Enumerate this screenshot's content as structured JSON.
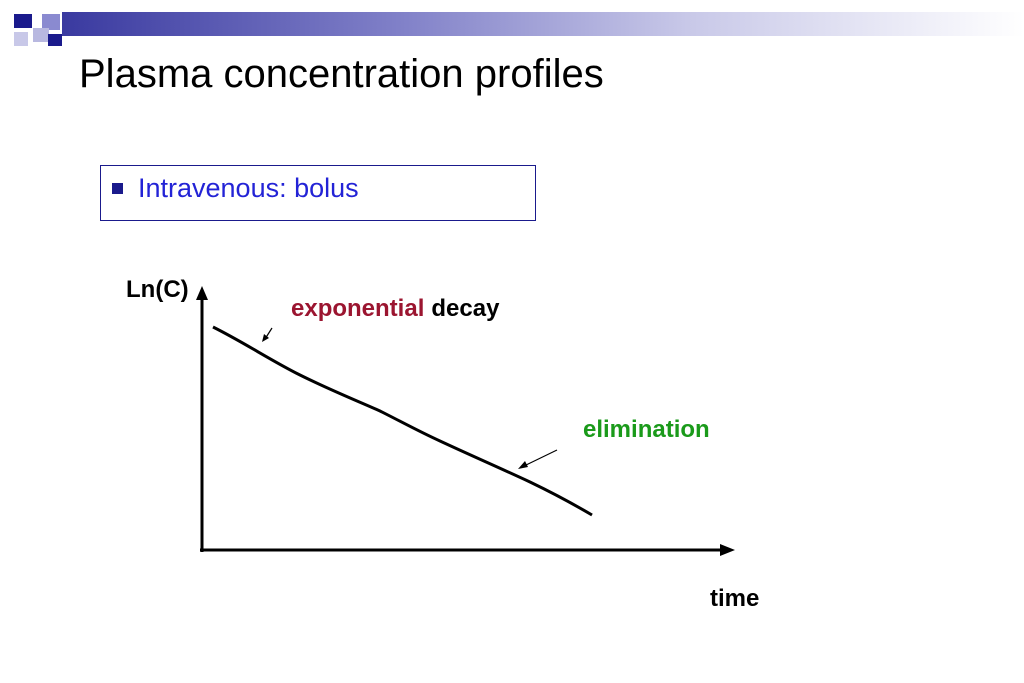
{
  "slide": {
    "title": "Plasma concentration profiles",
    "bullet": "Intravenous: bolus"
  },
  "diagram": {
    "y_axis_label": "Ln(C)",
    "x_axis_label": "time",
    "annotation_exponential": "exponential",
    "annotation_decay": "decay",
    "annotation_elimination": "elimination",
    "colors": {
      "exponential": "#9b1530",
      "elimination": "#1a9a1a",
      "bullet_text": "#2323d6",
      "accent": "#1a1a8c"
    }
  }
}
